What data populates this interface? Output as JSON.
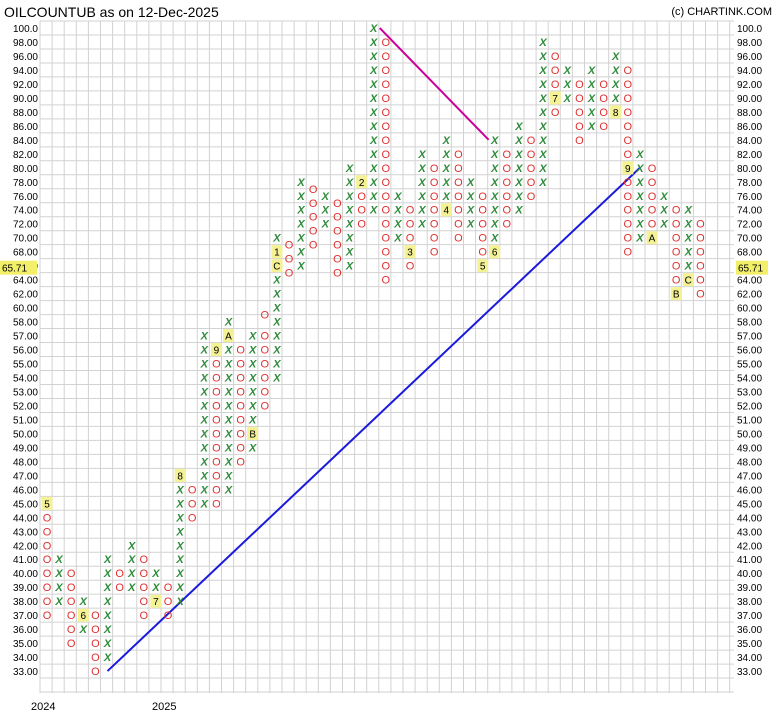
{
  "title": "OILCOUNTUB as on 12-Dec-2025",
  "credit": "(c) CHARTINK.COM",
  "chart_data": {
    "type": "point-and-figure",
    "box_size": 1,
    "reversal": 3,
    "y_ticks": [
      "100.0",
      "98.00",
      "96.00",
      "94.00",
      "92.00",
      "90.00",
      "88.00",
      "86.00",
      "84.00",
      "82.00",
      "80.00",
      "78.00",
      "76.00",
      "74.00",
      "72.00",
      "70.00",
      "68.00",
      "66.00",
      "64.00",
      "62.00",
      "60.00",
      "58.00",
      "57.00",
      "56.00",
      "55.00",
      "54.00",
      "53.00",
      "52.00",
      "51.00",
      "50.00",
      "49.00",
      "48.00",
      "47.00",
      "46.00",
      "45.00",
      "44.00",
      "43.00",
      "42.00",
      "41.00",
      "40.00",
      "39.00",
      "38.00",
      "37.00",
      "36.00",
      "35.00",
      "34.00",
      "33.00"
    ],
    "last_price": "65.71",
    "x_labels": [
      {
        "col": 0,
        "text": "2024"
      },
      {
        "col": 10,
        "text": "2025"
      }
    ],
    "columns": [
      {
        "t": "O",
        "top": 45,
        "bot": 37,
        "m": {
          "45": "5"
        }
      },
      {
        "t": "X",
        "top": 41,
        "bot": 38
      },
      {
        "t": "O",
        "top": 40,
        "bot": 35
      },
      {
        "t": "X",
        "top": 38,
        "bot": 36,
        "m": {
          "37": "6"
        }
      },
      {
        "t": "O",
        "top": 37,
        "bot": 33
      },
      {
        "t": "X",
        "top": 41,
        "bot": 34
      },
      {
        "t": "O",
        "top": 40,
        "bot": 39
      },
      {
        "t": "X",
        "top": 42,
        "bot": 39
      },
      {
        "t": "O",
        "top": 41,
        "bot": 37
      },
      {
        "t": "X",
        "top": 40,
        "bot": 38,
        "m": {
          "38": "7"
        }
      },
      {
        "t": "O",
        "top": 39,
        "bot": 37
      },
      {
        "t": "X",
        "top": 47,
        "bot": 38,
        "m": {
          "47": "8"
        }
      },
      {
        "t": "O",
        "top": 46,
        "bot": 44
      },
      {
        "t": "X",
        "top": 57,
        "bot": 45
      },
      {
        "t": "O",
        "top": 56,
        "bot": 45,
        "m": {
          "56": "9"
        }
      },
      {
        "t": "X",
        "top": 58,
        "bot": 46,
        "m": {
          "57": "A"
        }
      },
      {
        "t": "O",
        "top": 56,
        "bot": 48
      },
      {
        "t": "X",
        "top": 57,
        "bot": 49,
        "m": {
          "50": "B"
        }
      },
      {
        "t": "O",
        "top": 59,
        "bot": 52
      },
      {
        "t": "X",
        "top": 70,
        "bot": 54,
        "m": {
          "66": "C",
          "68": "1"
        }
      },
      {
        "t": "O",
        "top": 69,
        "bot": 65
      },
      {
        "t": "X",
        "top": 78,
        "bot": 66
      },
      {
        "t": "O",
        "top": 77,
        "bot": 68
      },
      {
        "t": "X",
        "top": 76,
        "bot": 72
      },
      {
        "t": "O",
        "top": 75,
        "bot": 64
      },
      {
        "t": "X",
        "top": 80,
        "bot": 66
      },
      {
        "t": "O",
        "top": 78,
        "bot": 72,
        "m": {
          "78": "2"
        }
      },
      {
        "t": "X",
        "top": 100,
        "bot": 74
      },
      {
        "t": "O",
        "top": 98,
        "bot": 64
      },
      {
        "t": "X",
        "top": 76,
        "bot": 70
      },
      {
        "t": "O",
        "top": 74,
        "bot": 66,
        "m": {
          "68": "3"
        }
      },
      {
        "t": "X",
        "top": 82,
        "bot": 72
      },
      {
        "t": "O",
        "top": 80,
        "bot": 68
      },
      {
        "t": "X",
        "top": 84,
        "bot": 74,
        "m": {
          "74": "4"
        }
      },
      {
        "t": "O",
        "top": 82,
        "bot": 70
      },
      {
        "t": "X",
        "top": 78,
        "bot": 72
      },
      {
        "t": "O",
        "top": 76,
        "bot": 66,
        "m": {
          "66": "5"
        }
      },
      {
        "t": "X",
        "top": 84,
        "bot": 68,
        "m": {
          "68": "6"
        }
      },
      {
        "t": "O",
        "top": 82,
        "bot": 72
      },
      {
        "t": "X",
        "top": 86,
        "bot": 74
      },
      {
        "t": "O",
        "top": 84,
        "bot": 76
      },
      {
        "t": "X",
        "top": 98,
        "bot": 78
      },
      {
        "t": "O",
        "top": 96,
        "bot": 88,
        "m": {
          "90": "7"
        }
      },
      {
        "t": "X",
        "top": 94,
        "bot": 90
      },
      {
        "t": "O",
        "top": 92,
        "bot": 84
      },
      {
        "t": "X",
        "top": 94,
        "bot": 86
      },
      {
        "t": "O",
        "top": 92,
        "bot": 86
      },
      {
        "t": "X",
        "top": 96,
        "bot": 88,
        "m": {
          "88": "8"
        }
      },
      {
        "t": "O",
        "top": 94,
        "bot": 68,
        "m": {
          "80": "9"
        }
      },
      {
        "t": "X",
        "top": 82,
        "bot": 70
      },
      {
        "t": "O",
        "top": 80,
        "bot": 70,
        "m": {
          "70": "A"
        }
      },
      {
        "t": "X",
        "top": 76,
        "bot": 72
      },
      {
        "t": "O",
        "top": 74,
        "bot": 62,
        "m": {
          "62": "B"
        }
      },
      {
        "t": "X",
        "top": 74,
        "bot": 64,
        "m": {
          "64": "C"
        }
      },
      {
        "t": "O",
        "top": 72,
        "bot": 62
      }
    ],
    "trendlines": [
      {
        "color": "#cc0099",
        "x1": 27.5,
        "y1": 100,
        "x2": 36.5,
        "y2": 84
      },
      {
        "color": "#1a1adc",
        "x1": 5,
        "y1": 33,
        "x2": 49,
        "y2": 80
      }
    ]
  }
}
